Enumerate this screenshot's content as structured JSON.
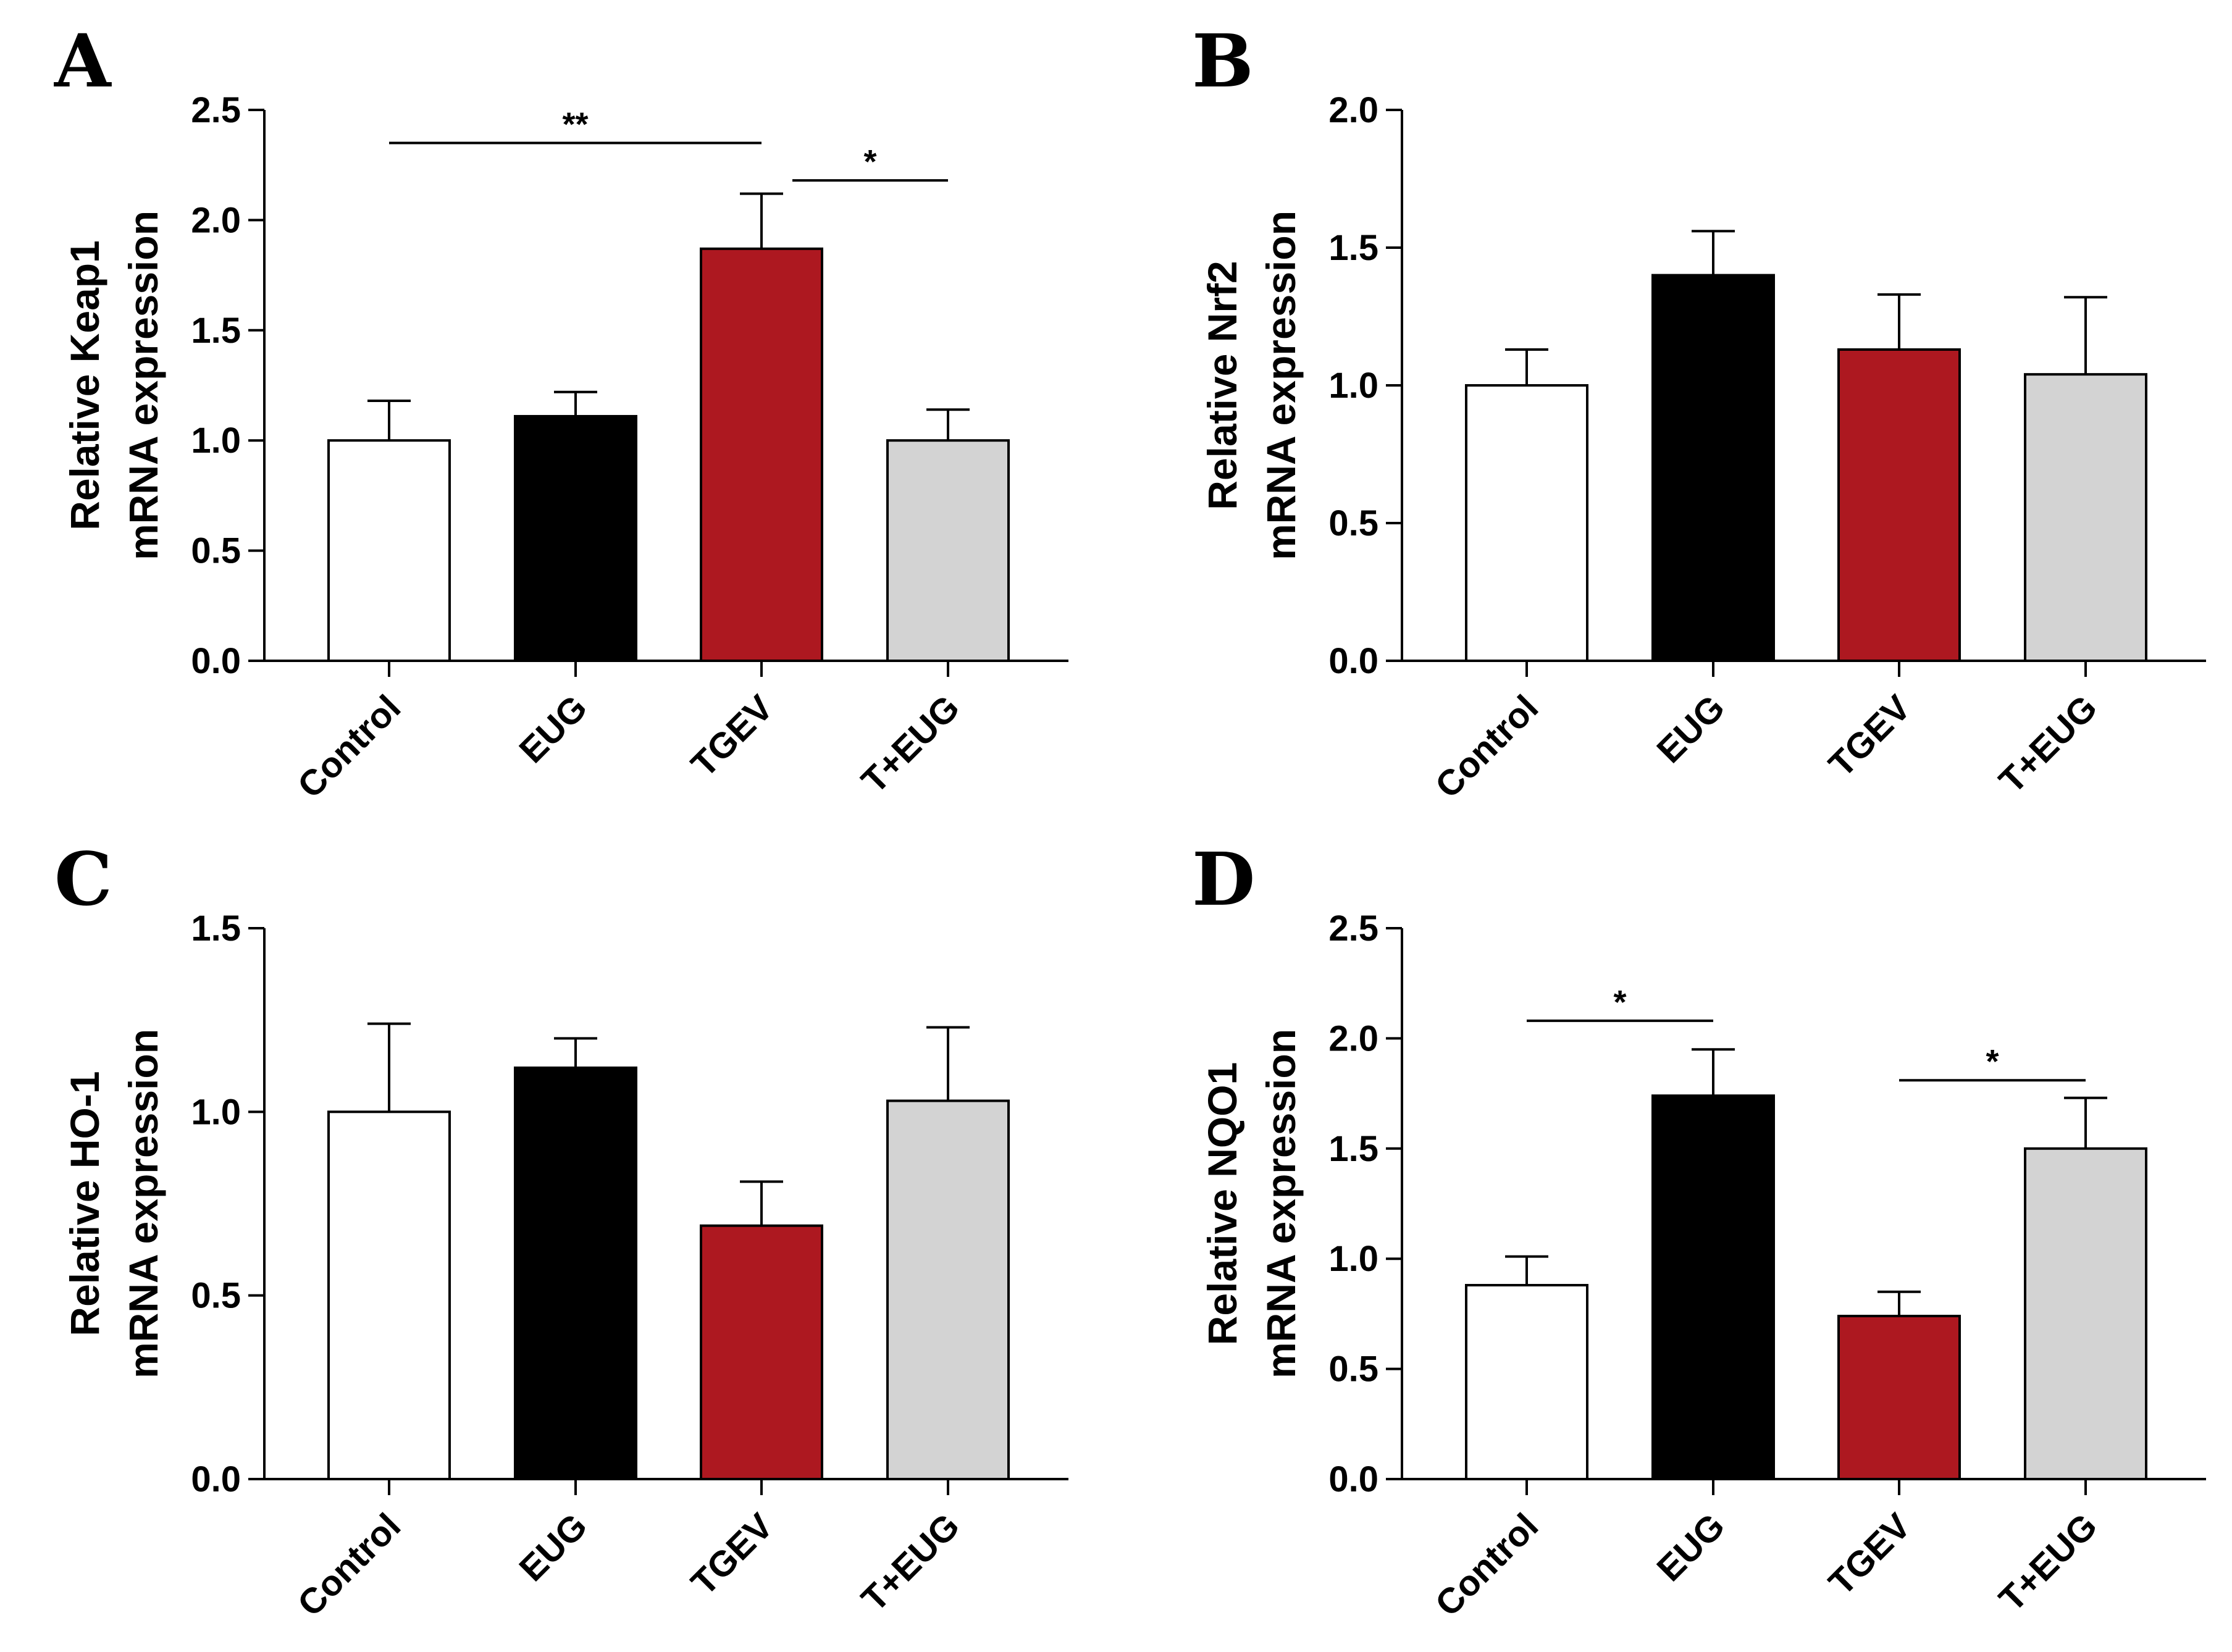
{
  "figure": {
    "colors": {
      "Control": "#ffffff",
      "EUG": "#000000",
      "TGEV": "#ad1820",
      "T+EUG": "#d3d3d3"
    }
  },
  "chart_data": [
    {
      "panel": "A",
      "type": "bar",
      "categories": [
        "Control",
        "EUG",
        "TGEV",
        "T+EUG"
      ],
      "values": [
        1.0,
        1.11,
        1.87,
        1.0
      ],
      "errors": [
        0.18,
        0.11,
        0.25,
        0.14
      ],
      "ylabel_line1": "Relative  Keap1",
      "ylabel_line2": "mRNA expression",
      "ylim": [
        0,
        2.5
      ],
      "yticks": [
        "0.0",
        "0.5",
        "1.0",
        "1.5",
        "2.0",
        "2.5"
      ],
      "significance": [
        {
          "from": 0,
          "to": 2,
          "label": "**",
          "y": 2.35
        },
        {
          "from": 2,
          "to": 3,
          "label": "*",
          "y": 2.18
        }
      ]
    },
    {
      "panel": "B",
      "type": "bar",
      "categories": [
        "Control",
        "EUG",
        "TGEV",
        "T+EUG"
      ],
      "values": [
        1.0,
        1.4,
        1.13,
        1.04
      ],
      "errors": [
        0.13,
        0.16,
        0.2,
        0.28
      ],
      "ylabel_line1": "Relative  Nrf2",
      "ylabel_line2": "mRNA expression",
      "ylim": [
        0,
        2.0
      ],
      "yticks": [
        "0.0",
        "0.5",
        "1.0",
        "1.5",
        "2.0"
      ],
      "significance": []
    },
    {
      "panel": "C",
      "type": "bar",
      "categories": [
        "Control",
        "EUG",
        "TGEV",
        "T+EUG"
      ],
      "values": [
        1.0,
        1.12,
        0.69,
        1.03
      ],
      "errors": [
        0.24,
        0.08,
        0.12,
        0.2
      ],
      "ylabel_line1": "Relative HO-1",
      "ylabel_line2": "mRNA expression",
      "ylim": [
        0,
        1.5
      ],
      "yticks": [
        "0.0",
        "0.5",
        "1.0",
        "1.5"
      ],
      "significance": []
    },
    {
      "panel": "D",
      "type": "bar",
      "categories": [
        "Control",
        "EUG",
        "TGEV",
        "T+EUG"
      ],
      "values": [
        0.88,
        1.74,
        0.74,
        1.5
      ],
      "errors": [
        0.13,
        0.21,
        0.11,
        0.23
      ],
      "ylabel_line1": "Relative NQO1",
      "ylabel_line2": "mRNA expression",
      "ylim": [
        0,
        2.5
      ],
      "yticks": [
        "0.0",
        "0.5",
        "1.0",
        "1.5",
        "2.0",
        "2.5"
      ],
      "significance": [
        {
          "from": 0,
          "to": 1,
          "label": "*",
          "y": 2.08
        },
        {
          "from": 2,
          "to": 3,
          "label": "*",
          "y": 1.81
        }
      ]
    }
  ]
}
